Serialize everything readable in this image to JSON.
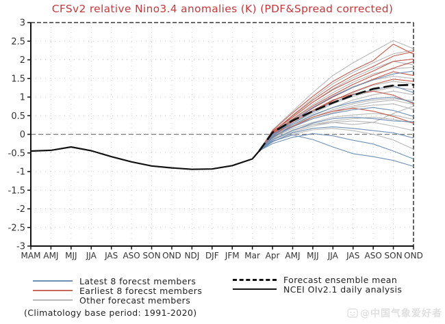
{
  "title": {
    "text": "CFSv2 relative Nino3.4 anomalies (K) (PDF&Spread corrected)",
    "color": "#c4393b"
  },
  "watermark": {
    "icon": "weibo-logo",
    "text": "@中国气象爱好者",
    "color": "#e0e0e0"
  },
  "legend": {
    "left": [
      {
        "label": "Latest 8 forecst members",
        "color": "#6d8fb5",
        "style": "solid"
      },
      {
        "label": "Earliest 8 forecst members",
        "color": "#c9695c",
        "style": "solid"
      },
      {
        "label": "Other forecast members",
        "color": "#b9b9b9",
        "style": "solid"
      }
    ],
    "right": [
      {
        "label": "Forecast ensemble mean",
        "color": "#111111",
        "style": "dashed"
      },
      {
        "label": "NCEI OIv2.1 daily analysis",
        "color": "#111111",
        "style": "solid"
      }
    ],
    "note": "(Climatology base period: 1991-2020)"
  },
  "chart_data": {
    "type": "line",
    "title": "CFSv2 relative Nino3.4 anomalies (K) (PDF&Spread corrected)",
    "categories": [
      "MAM",
      "AMJ",
      "MJJ",
      "JJA",
      "JAS",
      "ASO",
      "SON",
      "OND",
      "NDJ",
      "DJF",
      "JFM",
      "Mar",
      "Apr",
      "AMJ",
      "MJJ",
      "JJA",
      "JAS",
      "ASO",
      "SON",
      "OND"
    ],
    "ylim": [
      -3,
      3
    ],
    "ytick_step": 0.5,
    "grid": "dotted",
    "zero_line": true,
    "legend_position": "bottom",
    "colors": {
      "latest": "#6d8fb5",
      "earliest": "#c4584a",
      "other": "#b7b7b7",
      "analysis": "#111111",
      "mean": "#111111",
      "grid": "#c9c9c9",
      "zero": "#777777",
      "frame": "#111111",
      "tick_text": "#333333"
    },
    "analysis_x": [
      0,
      1,
      2,
      3,
      4,
      5,
      6,
      7,
      8,
      9,
      10,
      11,
      11.35
    ],
    "forecast_x": [
      11.35,
      12,
      13,
      14,
      15,
      16,
      17,
      18,
      19
    ],
    "series": [
      {
        "name": "NCEI OIv2.1 daily analysis",
        "role": "analysis",
        "values": [
          -0.45,
          -0.43,
          -0.34,
          -0.44,
          -0.6,
          -0.74,
          -0.85,
          -0.9,
          -0.94,
          -0.93,
          -0.84,
          -0.66,
          -0.44
        ]
      },
      {
        "name": "Forecast ensemble mean",
        "role": "mean",
        "values": [
          -0.44,
          0.05,
          0.37,
          0.62,
          0.85,
          1.05,
          1.22,
          1.31,
          1.33
        ]
      },
      {
        "name": "earliest member 1",
        "role": "member",
        "group": "earliest",
        "values": [
          -0.44,
          0.1,
          0.58,
          1.02,
          1.42,
          1.72,
          1.98,
          2.42,
          2.15
        ]
      },
      {
        "name": "earliest member 2",
        "role": "member",
        "group": "earliest",
        "values": [
          -0.44,
          0.06,
          0.5,
          0.92,
          1.28,
          1.58,
          1.82,
          2.1,
          2.22
        ]
      },
      {
        "name": "earliest member 3",
        "role": "member",
        "group": "earliest",
        "values": [
          -0.44,
          0.08,
          0.46,
          0.86,
          1.2,
          1.46,
          1.7,
          1.96,
          2.02
        ]
      },
      {
        "name": "earliest member 4",
        "role": "member",
        "group": "earliest",
        "values": [
          -0.44,
          0.02,
          0.4,
          0.76,
          1.06,
          1.34,
          1.58,
          1.78,
          1.95
        ]
      },
      {
        "name": "earliest member 5",
        "role": "member",
        "group": "earliest",
        "values": [
          -0.44,
          0.05,
          0.36,
          0.7,
          1.0,
          1.26,
          1.48,
          1.68,
          1.58
        ]
      },
      {
        "name": "earliest member 6",
        "role": "member",
        "group": "earliest",
        "values": [
          -0.44,
          -0.04,
          0.3,
          0.6,
          0.9,
          1.14,
          1.34,
          1.48,
          1.42
        ]
      },
      {
        "name": "earliest member 7",
        "role": "member",
        "group": "earliest",
        "values": [
          -0.44,
          0.0,
          0.34,
          0.64,
          0.92,
          1.08,
          1.16,
          1.05,
          0.82
        ]
      },
      {
        "name": "earliest member 8",
        "role": "member",
        "group": "earliest",
        "values": [
          -0.44,
          -0.08,
          0.22,
          0.46,
          0.62,
          0.7,
          0.62,
          0.48,
          0.3
        ]
      },
      {
        "name": "latest member 1",
        "role": "member",
        "group": "latest",
        "values": [
          -0.44,
          -0.04,
          0.36,
          0.72,
          1.02,
          1.26,
          1.46,
          1.62,
          1.7
        ]
      },
      {
        "name": "latest member 2",
        "role": "member",
        "group": "latest",
        "values": [
          -0.44,
          0.0,
          0.3,
          0.6,
          0.86,
          1.06,
          1.2,
          1.3,
          1.12
        ]
      },
      {
        "name": "latest member 3",
        "role": "member",
        "group": "latest",
        "values": [
          -0.44,
          -0.1,
          0.26,
          0.52,
          0.72,
          0.86,
          0.96,
          1.0,
          0.85
        ]
      },
      {
        "name": "latest member 4",
        "role": "member",
        "group": "latest",
        "values": [
          -0.44,
          -0.06,
          0.2,
          0.42,
          0.56,
          0.66,
          0.72,
          0.64,
          0.48
        ]
      },
      {
        "name": "latest member 5",
        "role": "member",
        "group": "latest",
        "values": [
          -0.44,
          -0.15,
          0.1,
          0.3,
          0.42,
          0.46,
          0.42,
          0.36,
          0.34
        ]
      },
      {
        "name": "latest member 6",
        "role": "member",
        "group": "latest",
        "values": [
          -0.44,
          -0.2,
          0.04,
          0.16,
          0.2,
          0.16,
          0.1,
          0.04,
          -0.1
        ]
      },
      {
        "name": "latest member 7",
        "role": "member",
        "group": "latest",
        "values": [
          -0.44,
          -0.25,
          -0.08,
          0.02,
          -0.04,
          -0.16,
          -0.26,
          -0.45,
          -0.66
        ]
      },
      {
        "name": "latest member 8",
        "role": "member",
        "group": "latest",
        "values": [
          -0.44,
          -0.18,
          -0.02,
          -0.14,
          -0.34,
          -0.52,
          -0.6,
          -0.7,
          -0.86
        ]
      },
      {
        "name": "other member 1",
        "role": "member",
        "group": "other",
        "values": [
          -0.44,
          0.12,
          0.62,
          1.12,
          1.58,
          1.92,
          2.22,
          2.52,
          2.3
        ]
      },
      {
        "name": "other member 2",
        "role": "member",
        "group": "other",
        "values": [
          -0.44,
          0.05,
          0.52,
          0.96,
          1.36,
          1.66,
          1.92,
          2.16,
          2.26
        ]
      },
      {
        "name": "other member 3",
        "role": "member",
        "group": "other",
        "values": [
          -0.44,
          0.0,
          0.46,
          0.86,
          1.22,
          1.52,
          1.76,
          1.96,
          1.86
        ]
      },
      {
        "name": "other member 4",
        "role": "member",
        "group": "other",
        "values": [
          -0.44,
          0.06,
          0.42,
          0.8,
          1.12,
          1.4,
          1.62,
          1.76,
          1.8
        ]
      },
      {
        "name": "other member 5",
        "role": "member",
        "group": "other",
        "values": [
          -0.44,
          0.0,
          0.36,
          0.72,
          1.02,
          1.28,
          1.46,
          1.56,
          1.5
        ]
      },
      {
        "name": "other member 6",
        "role": "member",
        "group": "other",
        "values": [
          -0.44,
          -0.05,
          0.3,
          0.62,
          0.92,
          1.12,
          1.32,
          1.42,
          1.36
        ]
      },
      {
        "name": "other member 7",
        "role": "member",
        "group": "other",
        "values": [
          -0.44,
          0.0,
          0.3,
          0.56,
          0.82,
          1.02,
          1.16,
          1.26,
          1.2
        ]
      },
      {
        "name": "other member 8",
        "role": "member",
        "group": "other",
        "values": [
          -0.44,
          -0.06,
          0.26,
          0.5,
          0.72,
          0.92,
          1.06,
          1.16,
          1.06
        ]
      },
      {
        "name": "other member 9",
        "role": "member",
        "group": "other",
        "values": [
          -0.44,
          -0.1,
          0.2,
          0.46,
          0.66,
          0.82,
          0.92,
          0.96,
          0.9
        ]
      },
      {
        "name": "other member 10",
        "role": "member",
        "group": "other",
        "values": [
          -0.44,
          -0.04,
          0.22,
          0.42,
          0.58,
          0.72,
          0.78,
          0.82,
          0.66
        ]
      },
      {
        "name": "other member 11",
        "role": "member",
        "group": "other",
        "values": [
          -0.44,
          -0.1,
          0.16,
          0.32,
          0.46,
          0.52,
          0.56,
          0.52,
          0.4
        ]
      },
      {
        "name": "other member 12",
        "role": "member",
        "group": "other",
        "values": [
          -0.44,
          -0.15,
          0.06,
          0.22,
          0.32,
          0.36,
          0.32,
          0.22,
          0.1
        ]
      },
      {
        "name": "other member 13",
        "role": "member",
        "group": "other",
        "values": [
          -0.44,
          -0.2,
          0.0,
          0.12,
          0.16,
          0.1,
          0.0,
          -0.15,
          -0.4
        ]
      },
      {
        "name": "other member 14",
        "role": "member",
        "group": "other",
        "values": [
          -0.44,
          -0.14,
          0.12,
          0.26,
          0.32,
          0.26,
          0.32,
          0.56,
          0.76
        ]
      },
      {
        "name": "other member 15",
        "role": "member",
        "group": "other",
        "values": [
          -0.44,
          0.02,
          0.26,
          0.46,
          0.62,
          0.76,
          0.86,
          0.92,
          0.8
        ]
      },
      {
        "name": "other member 16",
        "role": "member",
        "group": "other",
        "values": [
          -0.44,
          -0.12,
          0.1,
          0.26,
          0.36,
          0.42,
          0.46,
          0.4,
          0.3
        ]
      }
    ]
  }
}
